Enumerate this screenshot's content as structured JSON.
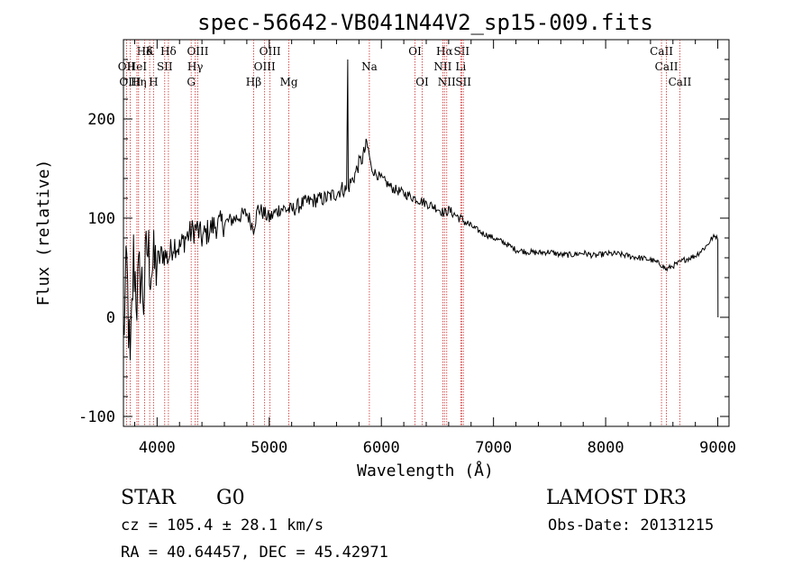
{
  "chart_data": {
    "type": "line",
    "title": "spec-56642-VB041N44V2_sp15-009.fits",
    "xlabel": "Wavelength (Å)",
    "ylabel": "Flux (relative)",
    "xlim": [
      3700,
      9100
    ],
    "ylim": [
      -110,
      280
    ],
    "xticks": [
      4000,
      5000,
      6000,
      7000,
      8000,
      9000
    ],
    "yticks": [
      -100,
      0,
      100,
      200
    ],
    "series": [
      {
        "name": "spectrum",
        "x": [
          3700,
          3730,
          3760,
          3790,
          3820,
          3850,
          3880,
          3910,
          3940,
          3970,
          4000,
          4050,
          4100,
          4150,
          4200,
          4250,
          4300,
          4350,
          4400,
          4500,
          4600,
          4700,
          4800,
          4860,
          4900,
          5000,
          5100,
          5200,
          5300,
          5400,
          5500,
          5600,
          5650,
          5690,
          5700,
          5705,
          5720,
          5750,
          5800,
          5830,
          5870,
          5890,
          5910,
          5950,
          6000,
          6100,
          6200,
          6300,
          6400,
          6500,
          6560,
          6600,
          6700,
          6800,
          6900,
          7000,
          7100,
          7200,
          7300,
          7400,
          7500,
          7600,
          7700,
          7800,
          7900,
          8000,
          8100,
          8200,
          8300,
          8400,
          8500,
          8540,
          8600,
          8660,
          8700,
          8800,
          8900,
          8950,
          8990,
          9000,
          9002
        ],
        "y": [
          -20,
          50,
          -60,
          60,
          20,
          45,
          20,
          70,
          55,
          50,
          55,
          65,
          60,
          75,
          70,
          80,
          85,
          90,
          80,
          92,
          95,
          100,
          105,
          90,
          110,
          100,
          110,
          108,
          115,
          118,
          120,
          125,
          130,
          128,
          260,
          130,
          135,
          140,
          155,
          160,
          175,
          165,
          150,
          145,
          140,
          130,
          125,
          120,
          115,
          110,
          105,
          108,
          100,
          92,
          85,
          80,
          75,
          68,
          66,
          65,
          66,
          63,
          63,
          65,
          62,
          64,
          64,
          62,
          60,
          58,
          53,
          48,
          52,
          55,
          58,
          62,
          72,
          80,
          82,
          78,
          0
        ]
      }
    ],
    "line_markers": [
      {
        "label": "Hδ",
        "x": 3889,
        "row": 1
      },
      {
        "label": "K",
        "x": 3934,
        "row": 1
      },
      {
        "label": "Hδ",
        "x": 4101,
        "row": 1
      },
      {
        "label": "OIII",
        "x": 4363,
        "row": 1
      },
      {
        "label": "OIII",
        "x": 5007,
        "row": 1
      },
      {
        "label": "OI",
        "x": 6300,
        "row": 1
      },
      {
        "label": "Hα",
        "x": 6563,
        "row": 1
      },
      {
        "label": "SII",
        "x": 6716,
        "row": 1
      },
      {
        "label": "CaII",
        "x": 8498,
        "row": 1
      },
      {
        "label": "OII",
        "x": 3727,
        "row": 2
      },
      {
        "label": "HeI",
        "x": 3820,
        "row": 2
      },
      {
        "label": "SII",
        "x": 4068,
        "row": 2
      },
      {
        "label": "Hγ",
        "x": 4340,
        "row": 2
      },
      {
        "label": "OIII",
        "x": 4959,
        "row": 2
      },
      {
        "label": "Na",
        "x": 5893,
        "row": 2
      },
      {
        "label": "NII",
        "x": 6548,
        "row": 2
      },
      {
        "label": "Li",
        "x": 6708,
        "row": 2
      },
      {
        "label": "CaII",
        "x": 8542,
        "row": 2
      },
      {
        "label": "OIII",
        "x": 3760,
        "row": 3
      },
      {
        "label": "Hη",
        "x": 3835,
        "row": 3
      },
      {
        "label": "H",
        "x": 3968,
        "row": 3
      },
      {
        "label": "G",
        "x": 4304,
        "row": 3
      },
      {
        "label": "Hβ",
        "x": 4861,
        "row": 3
      },
      {
        "label": "Mg",
        "x": 5175,
        "row": 3
      },
      {
        "label": "OI",
        "x": 6364,
        "row": 3
      },
      {
        "label": "NII",
        "x": 6583,
        "row": 3
      },
      {
        "label": "SII",
        "x": 6731,
        "row": 3
      },
      {
        "label": "CaII",
        "x": 8662,
        "row": 3
      }
    ]
  },
  "info": {
    "object_class": "STAR",
    "subclass": "G0",
    "survey": "LAMOST DR3",
    "redshift": "cz = 105.4 ± 28.1 km/s",
    "obs_date": "Obs-Date: 20131215",
    "coords": "RA =  40.64457, DEC =  45.42971"
  }
}
